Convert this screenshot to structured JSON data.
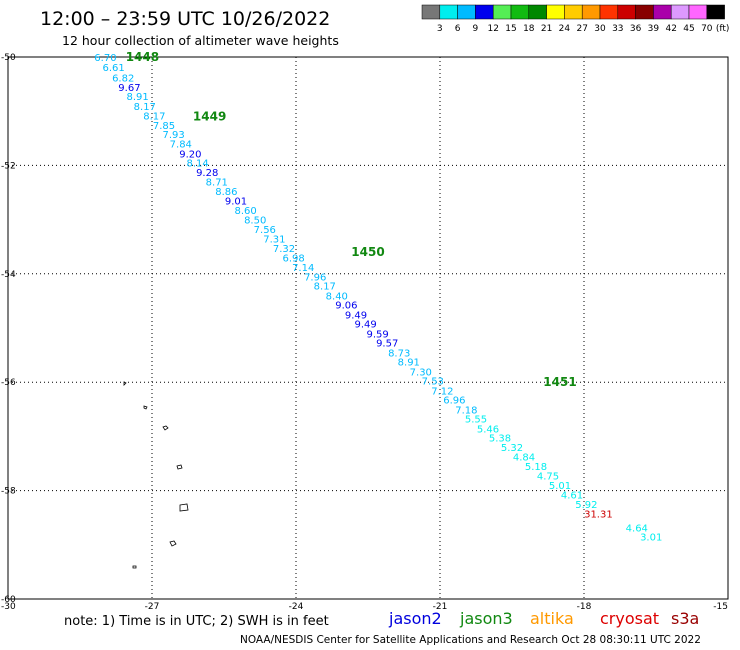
{
  "chart_data": {
    "type": "scatter",
    "title": "12:00 – 23:59 UTC 10/26/2022",
    "subtitle": "12 hour collection of altimeter wave heights",
    "xlim": [
      -30,
      -15
    ],
    "ylim": [
      -60,
      -50
    ],
    "x_ticks": [
      -30,
      -27,
      -24,
      -21,
      -18,
      -15
    ],
    "y_ticks": [
      -50,
      -52,
      -54,
      -56,
      -58,
      -60
    ],
    "x_tick_labels": [
      "-30",
      "-27",
      "-24",
      "-21",
      "-18",
      "-15"
    ],
    "y_tick_labels": [
      "-50",
      "-52",
      "-54",
      "-56",
      "-58",
      "-60"
    ],
    "grid": true,
    "color_scale": {
      "labels": [
        "3",
        "6",
        "9",
        "12",
        "15",
        "18",
        "21",
        "24",
        "27",
        "30",
        "33",
        "36",
        "39",
        "42",
        "45",
        "70"
      ],
      "unit": "(ft)",
      "colors": [
        "#777777",
        "#00eeee",
        "#00bbff",
        "#0000ee",
        "#55ee55",
        "#11bb11",
        "#008800",
        "#ffff00",
        "#ffcc00",
        "#ff9900",
        "#ff3300",
        "#cc0000",
        "#880000",
        "#aa00aa",
        "#dd99ff",
        "#ff66ff",
        "#000000"
      ]
    },
    "pass_times": [
      {
        "label": "1448",
        "x": -27.2,
        "y": -50.0
      },
      {
        "label": "1449",
        "x": -25.8,
        "y": -51.1
      },
      {
        "label": "1450",
        "x": -22.5,
        "y": -53.6
      },
      {
        "label": "1451",
        "x": -18.5,
        "y": -56.0
      }
    ],
    "series": [
      {
        "satellite": "jason3",
        "points": [
          {
            "x": -27.97,
            "y": -50.0,
            "swh": "6.70",
            "color": "#00bbff"
          },
          {
            "x": -27.8,
            "y": -50.18,
            "swh": "6.61",
            "color": "#00bbff"
          },
          {
            "x": -27.6,
            "y": -50.38,
            "swh": "6.82",
            "color": "#00bbff"
          },
          {
            "x": -27.47,
            "y": -50.55,
            "swh": "9.67",
            "color": "#0000ee"
          },
          {
            "x": -27.3,
            "y": -50.72,
            "swh": "8.91",
            "color": "#00bbff"
          },
          {
            "x": -27.15,
            "y": -50.9,
            "swh": "8.17",
            "color": "#00bbff"
          },
          {
            "x": -26.95,
            "y": -51.08,
            "swh": "8.17",
            "color": "#00bbff"
          },
          {
            "x": -26.75,
            "y": -51.25,
            "swh": "7.85",
            "color": "#00bbff"
          },
          {
            "x": -26.55,
            "y": -51.42,
            "swh": "7.93",
            "color": "#00bbff"
          },
          {
            "x": -26.4,
            "y": -51.6,
            "swh": "7.84",
            "color": "#00bbff"
          },
          {
            "x": -26.2,
            "y": -51.78,
            "swh": "9.20",
            "color": "#0000ee"
          },
          {
            "x": -26.05,
            "y": -51.95,
            "swh": "8.14",
            "color": "#00bbff"
          },
          {
            "x": -25.85,
            "y": -52.12,
            "swh": "9.28",
            "color": "#0000ee"
          },
          {
            "x": -25.65,
            "y": -52.3,
            "swh": "8.71",
            "color": "#00bbff"
          },
          {
            "x": -25.45,
            "y": -52.47,
            "swh": "8.86",
            "color": "#00bbff"
          },
          {
            "x": -25.25,
            "y": -52.65,
            "swh": "9.01",
            "color": "#0000ee"
          },
          {
            "x": -25.05,
            "y": -52.82,
            "swh": "8.60",
            "color": "#00bbff"
          },
          {
            "x": -24.85,
            "y": -53.0,
            "swh": "8.50",
            "color": "#00bbff"
          },
          {
            "x": -24.65,
            "y": -53.17,
            "swh": "7.56",
            "color": "#00bbff"
          },
          {
            "x": -24.45,
            "y": -53.35,
            "swh": "7.31",
            "color": "#00bbff"
          },
          {
            "x": -24.25,
            "y": -53.52,
            "swh": "7.32",
            "color": "#00bbff"
          },
          {
            "x": -24.05,
            "y": -53.7,
            "swh": "6.98",
            "color": "#00bbff"
          },
          {
            "x": -23.85,
            "y": -53.87,
            "swh": "7.14",
            "color": "#00bbff"
          },
          {
            "x": -23.6,
            "y": -54.05,
            "swh": "7.96",
            "color": "#00bbff"
          },
          {
            "x": -23.4,
            "y": -54.22,
            "swh": "8.17",
            "color": "#00bbff"
          },
          {
            "x": -23.15,
            "y": -54.4,
            "swh": "8.40",
            "color": "#00bbff"
          },
          {
            "x": -22.95,
            "y": -54.57,
            "swh": "9.06",
            "color": "#0000ee"
          },
          {
            "x": -22.75,
            "y": -54.75,
            "swh": "9.49",
            "color": "#0000ee"
          },
          {
            "x": -22.55,
            "y": -54.92,
            "swh": "9.49",
            "color": "#0000ee"
          },
          {
            "x": -22.3,
            "y": -55.1,
            "swh": "9.59",
            "color": "#0000ee"
          },
          {
            "x": -22.1,
            "y": -55.27,
            "swh": "9.57",
            "color": "#0000ee"
          },
          {
            "x": -21.85,
            "y": -55.45,
            "swh": "8.73",
            "color": "#00bbff"
          },
          {
            "x": -21.65,
            "y": -55.62,
            "swh": "8.91",
            "color": "#00bbff"
          },
          {
            "x": -21.4,
            "y": -55.8,
            "swh": "7.30",
            "color": "#00bbff"
          },
          {
            "x": -21.15,
            "y": -55.97,
            "swh": "7.53",
            "color": "#00bbff"
          },
          {
            "x": -20.95,
            "y": -56.15,
            "swh": "7.12",
            "color": "#00bbff"
          },
          {
            "x": -20.7,
            "y": -56.32,
            "swh": "6.96",
            "color": "#00bbff"
          },
          {
            "x": -20.45,
            "y": -56.5,
            "swh": "7.18",
            "color": "#00bbff"
          },
          {
            "x": -20.25,
            "y": -56.67,
            "swh": "5.55",
            "color": "#00eeee"
          },
          {
            "x": -20.0,
            "y": -56.85,
            "swh": "5.46",
            "color": "#00eeee"
          },
          {
            "x": -19.75,
            "y": -57.02,
            "swh": "5.38",
            "color": "#00eeee"
          },
          {
            "x": -19.5,
            "y": -57.2,
            "swh": "5.32",
            "color": "#00eeee"
          },
          {
            "x": -19.25,
            "y": -57.37,
            "swh": "4.84",
            "color": "#00eeee"
          },
          {
            "x": -19.0,
            "y": -57.55,
            "swh": "5.18",
            "color": "#00eeee"
          },
          {
            "x": -18.75,
            "y": -57.72,
            "swh": "4.75",
            "color": "#00eeee"
          },
          {
            "x": -18.5,
            "y": -57.9,
            "swh": "5.01",
            "color": "#00eeee"
          },
          {
            "x": -18.25,
            "y": -58.07,
            "swh": "4.61",
            "color": "#00eeee"
          },
          {
            "x": -17.95,
            "y": -58.25,
            "swh": "5.92",
            "color": "#00eeee"
          },
          {
            "x": -16.9,
            "y": -58.68,
            "swh": "4.64",
            "color": "#00eeee"
          },
          {
            "x": -16.6,
            "y": -58.85,
            "swh": "3.01",
            "color": "#00eeee"
          }
        ]
      },
      {
        "satellite": "cryosat",
        "points": [
          {
            "x": -17.7,
            "y": -58.42,
            "swh": "31.31",
            "color": "#cc0000"
          }
        ]
      }
    ]
  },
  "footer": {
    "note": "note:  1) Time is in UTC;  2) SWH is in feet",
    "satellites": [
      {
        "name": "jason2",
        "color": "#0000dd"
      },
      {
        "name": "jason3",
        "color": "#118811"
      },
      {
        "name": "altika",
        "color": "#ff9900"
      },
      {
        "name": "cryosat",
        "color": "#dd0000"
      },
      {
        "name": "s3a",
        "color": "#990000"
      }
    ],
    "credit": "NOAA/NESDIS Center for Satellite Applications and Research     Oct 28 08:30:11 UTC 2022"
  }
}
